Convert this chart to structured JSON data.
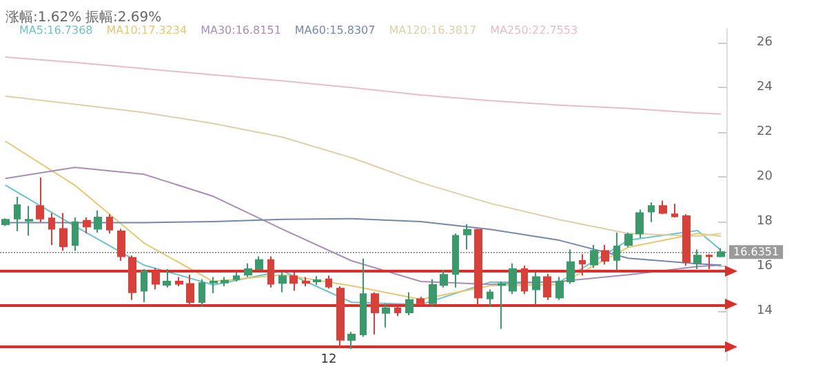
{
  "chart_data": {
    "type": "candlestick",
    "categories": [
      null,
      null,
      null,
      null,
      null,
      null,
      null,
      null,
      null,
      null,
      null,
      null,
      null,
      null,
      null,
      null,
      null,
      null,
      null,
      null,
      null,
      null,
      null,
      null,
      null,
      null,
      null,
      null,
      null,
      null,
      null,
      null,
      null,
      null,
      null,
      null,
      null,
      null,
      null,
      null,
      null,
      null,
      null,
      null,
      null,
      null,
      null,
      null,
      null,
      null,
      null,
      null,
      null,
      null,
      null,
      null,
      null,
      null,
      null,
      null,
      null,
      null,
      null
    ],
    "ohlc": [
      [
        17.88,
        18.15,
        17.8,
        18.09
      ],
      [
        18.13,
        19.11,
        17.57,
        18.74
      ],
      [
        18.04,
        18.7,
        17.37,
        18.09
      ],
      [
        18.7,
        19.97,
        17.98,
        18.13
      ],
      [
        18.15,
        18.39,
        16.96,
        17.68
      ],
      [
        17.68,
        18.39,
        16.7,
        16.9
      ],
      [
        16.96,
        18.19,
        16.7,
        17.98
      ],
      [
        18.04,
        18.19,
        17.47,
        17.78
      ],
      [
        17.68,
        18.5,
        17.51,
        18.19
      ],
      [
        18.19,
        18.33,
        17.47,
        17.64
      ],
      [
        17.57,
        17.68,
        16.25,
        16.45
      ],
      [
        16.39,
        16.49,
        14.51,
        14.85
      ],
      [
        14.92,
        15.88,
        14.41,
        15.8
      ],
      [
        15.77,
        15.94,
        14.98,
        15.22
      ],
      [
        15.18,
        15.88,
        15.06,
        15.33
      ],
      [
        15.33,
        15.53,
        15.12,
        15.22
      ],
      [
        15.22,
        15.63,
        14.24,
        14.41
      ],
      [
        14.41,
        15.43,
        14.2,
        15.26
      ],
      [
        15.28,
        15.53,
        14.81,
        15.33
      ],
      [
        15.28,
        15.53,
        15.12,
        15.37
      ],
      [
        15.43,
        15.73,
        15.33,
        15.57
      ],
      [
        15.63,
        16.14,
        15.53,
        15.88
      ],
      [
        15.88,
        16.45,
        15.84,
        16.29
      ],
      [
        16.29,
        16.45,
        15.06,
        15.22
      ],
      [
        15.26,
        15.73,
        14.85,
        15.57
      ],
      [
        15.57,
        15.73,
        14.92,
        15.26
      ],
      [
        15.33,
        15.53,
        15.12,
        15.26
      ],
      [
        15.33,
        15.57,
        15.18,
        15.39
      ],
      [
        15.43,
        15.59,
        15.02,
        15.1
      ],
      [
        15.02,
        15.12,
        12.36,
        12.73
      ],
      [
        12.71,
        13.08,
        12.32,
        12.97
      ],
      [
        12.97,
        16.35,
        12.87,
        14.77
      ],
      [
        14.77,
        14.85,
        12.97,
        13.95
      ],
      [
        13.93,
        14.36,
        13.28,
        14.14
      ],
      [
        14.14,
        14.24,
        13.79,
        13.95
      ],
      [
        13.95,
        14.85,
        13.83,
        14.51
      ],
      [
        14.55,
        14.65,
        14.24,
        14.36
      ],
      [
        14.36,
        15.43,
        14.2,
        15.18
      ],
      [
        15.18,
        15.84,
        15.06,
        15.63
      ],
      [
        15.67,
        17.47,
        15.06,
        17.37
      ],
      [
        17.43,
        17.88,
        16.76,
        17.64
      ],
      [
        17.64,
        17.68,
        14.3,
        14.61
      ],
      [
        14.57,
        14.98,
        14.2,
        14.85
      ],
      [
        15.18,
        15.33,
        13.22,
        15.22
      ],
      [
        14.92,
        16.14,
        14.77,
        15.88
      ],
      [
        15.88,
        16.04,
        14.77,
        14.92
      ],
      [
        14.98,
        15.73,
        14.3,
        15.53
      ],
      [
        15.53,
        15.67,
        14.51,
        14.65
      ],
      [
        14.61,
        15.53,
        14.51,
        15.33
      ],
      [
        15.33,
        16.76,
        15.22,
        16.2
      ],
      [
        16.25,
        16.55,
        15.59,
        16.12
      ],
      [
        16.08,
        16.96,
        15.94,
        16.7
      ],
      [
        16.7,
        16.96,
        16.08,
        16.25
      ],
      [
        16.29,
        17.51,
        15.84,
        16.9
      ],
      [
        16.96,
        17.51,
        16.86,
        17.43
      ],
      [
        17.47,
        18.54,
        17.27,
        18.39
      ],
      [
        18.45,
        18.86,
        17.98,
        18.7
      ],
      [
        18.7,
        18.94,
        18.33,
        18.39
      ],
      [
        18.33,
        18.8,
        18.19,
        18.23
      ],
      [
        18.25,
        18.33,
        16.04,
        16.2
      ],
      [
        16.14,
        16.76,
        15.88,
        16.49
      ],
      [
        16.49,
        16.55,
        15.88,
        16.45
      ],
      [
        16.45,
        16.82,
        16.41,
        16.64
      ]
    ],
    "colors": [
      "#3a9a6c",
      "#3a9a6c",
      "#3a9a6c",
      "#d8403a",
      "#d8403a",
      "#d8403a",
      "#3a9a6c",
      "#d8403a",
      "#3a9a6c",
      "#d8403a",
      "#d8403a",
      "#d8403a",
      "#3a9a6c",
      "#d8403a",
      "#3a9a6c",
      "#d8403a",
      "#d8403a",
      "#3a9a6c",
      "#3a9a6c",
      "#3a9a6c",
      "#3a9a6c",
      "#3a9a6c",
      "#3a9a6c",
      "#d8403a",
      "#3a9a6c",
      "#d8403a",
      "#d8403a",
      "#3a9a6c",
      "#d8403a",
      "#d8403a",
      "#3a9a6c",
      "#3a9a6c",
      "#d8403a",
      "#3a9a6c",
      "#d8403a",
      "#3a9a6c",
      "#d8403a",
      "#3a9a6c",
      "#3a9a6c",
      "#3a9a6c",
      "#3a9a6c",
      "#d8403a",
      "#3a9a6c",
      "#3a9a6c",
      "#3a9a6c",
      "#d8403a",
      "#3a9a6c",
      "#d8403a",
      "#3a9a6c",
      "#3a9a6c",
      "#d8403a",
      "#3a9a6c",
      "#d8403a",
      "#3a9a6c",
      "#3a9a6c",
      "#3a9a6c",
      "#3a9a6c",
      "#d8403a",
      "#d8403a",
      "#d8403a",
      "#3a9a6c",
      "#d8403a",
      "#3a9a6c"
    ],
    "series": [
      {
        "type": "line",
        "name": "MA5:16.7368",
        "color": "#6cc3c8",
        "values": [
          19.62,
          null,
          null,
          null,
          null,
          null,
          17.8,
          null,
          null,
          null,
          null,
          null,
          16.06,
          null,
          null,
          null,
          null,
          null,
          15.18,
          null,
          null,
          null,
          null,
          null,
          15.8,
          null,
          null,
          null,
          null,
          null,
          14.4,
          null,
          null,
          null,
          null,
          null,
          14.3,
          null,
          null,
          null,
          null,
          null,
          15.3,
          null,
          null,
          null,
          null,
          null,
          15.3,
          null,
          null,
          null,
          null,
          null,
          17.17,
          null,
          null,
          null,
          null,
          null,
          17.6,
          null,
          16.74
        ]
      },
      {
        "type": "line",
        "name": "MA10:17.3234",
        "color": "#e6c772",
        "values": [
          21.58,
          null,
          null,
          null,
          null,
          null,
          19.62,
          null,
          null,
          null,
          null,
          null,
          17.04,
          null,
          null,
          null,
          null,
          null,
          15.33,
          null,
          null,
          null,
          null,
          null,
          15.63,
          null,
          null,
          null,
          null,
          null,
          15.14,
          null,
          null,
          null,
          null,
          null,
          14.53,
          null,
          null,
          null,
          null,
          null,
          15.14,
          null,
          null,
          null,
          null,
          null,
          15.2,
          null,
          null,
          null,
          null,
          null,
          16.86,
          null,
          null,
          null,
          null,
          null,
          17.47,
          null,
          17.35
        ]
      },
      {
        "type": "line",
        "name": "MA30:16.8151",
        "color": "#a88cb8",
        "values": [
          19.93,
          null,
          null,
          null,
          null,
          null,
          20.42,
          null,
          null,
          null,
          null,
          null,
          20.11,
          null,
          null,
          null,
          null,
          null,
          19.13,
          null,
          null,
          null,
          null,
          null,
          17.66,
          null,
          null,
          null,
          null,
          null,
          16.25,
          null,
          null,
          null,
          null,
          null,
          15.33,
          null,
          null,
          null,
          null,
          null,
          15.2,
          null,
          null,
          null,
          null,
          null,
          15.33,
          null,
          null,
          null,
          null,
          null,
          15.63,
          null,
          null,
          null,
          null,
          null,
          16.0,
          null,
          16.06
        ]
      },
      {
        "type": "line",
        "name": "MA60:15.8307",
        "color": "#7487ad",
        "values": [
          17.96,
          null,
          null,
          null,
          null,
          null,
          17.96,
          null,
          null,
          null,
          null,
          null,
          17.96,
          null,
          null,
          null,
          null,
          null,
          18.0,
          null,
          null,
          null,
          null,
          null,
          18.1,
          null,
          null,
          null,
          null,
          null,
          18.13,
          null,
          null,
          null,
          null,
          null,
          18.0,
          null,
          null,
          null,
          null,
          null,
          17.66,
          null,
          null,
          null,
          null,
          null,
          17.17,
          null,
          null,
          null,
          null,
          null,
          16.37,
          null,
          null,
          null,
          null,
          null,
          16.12,
          null,
          16.06
        ]
      },
      {
        "type": "line",
        "name": "MA120:16.3817",
        "color": "#ddd0a8",
        "values": [
          23.6,
          null,
          null,
          null,
          null,
          null,
          23.24,
          null,
          null,
          null,
          null,
          null,
          22.87,
          null,
          null,
          null,
          null,
          null,
          22.38,
          null,
          null,
          null,
          null,
          null,
          21.77,
          null,
          null,
          null,
          null,
          null,
          20.85,
          null,
          null,
          null,
          null,
          null,
          19.74,
          null,
          null,
          null,
          null,
          null,
          18.82,
          null,
          null,
          null,
          null,
          null,
          18.09,
          null,
          null,
          null,
          null,
          null,
          17.47,
          null,
          null,
          null,
          null,
          null,
          17.35,
          null,
          17.47
        ]
      },
      {
        "type": "line",
        "name": "MA250:22.7553",
        "color": "#e8bccb",
        "values": [
          25.34,
          null,
          null,
          null,
          null,
          null,
          25.1,
          null,
          null,
          null,
          null,
          null,
          24.83,
          null,
          null,
          null,
          null,
          null,
          24.55,
          null,
          null,
          null,
          null,
          null,
          24.28,
          null,
          null,
          null,
          null,
          null,
          23.98,
          null,
          null,
          null,
          null,
          null,
          23.65,
          null,
          null,
          null,
          null,
          null,
          23.4,
          null,
          null,
          null,
          null,
          null,
          23.2,
          null,
          null,
          null,
          null,
          null,
          23.05,
          null,
          null,
          null,
          null,
          null,
          22.85,
          null,
          22.8
        ]
      }
    ],
    "ylim": [
      11.8,
      26.6
    ],
    "yticks": [
      14,
      16,
      18,
      20,
      22,
      24,
      26
    ],
    "grid": false,
    "line_style": "solid",
    "legend": "top left",
    "tick_labels": "y",
    "ref_lines": [
      {
        "axis": "y",
        "value": 16.6351,
        "label": "16.6351",
        "color": "#9a9a9a",
        "line_style": "dotted"
      },
      {
        "axis": "y",
        "value": 15.8,
        "color": "#d8302c",
        "line_style": "solid"
      },
      {
        "axis": "y",
        "value": 14.3,
        "color": "#d8302c",
        "line_style": "solid"
      },
      {
        "axis": "y",
        "value": 12.44,
        "color": "#d8302c",
        "line_style": "solid"
      }
    ],
    "annotations": [
      "涨幅:1.62%",
      "振幅:2.69%",
      {
        "text": "12",
        "y": 12.36
      }
    ]
  }
}
